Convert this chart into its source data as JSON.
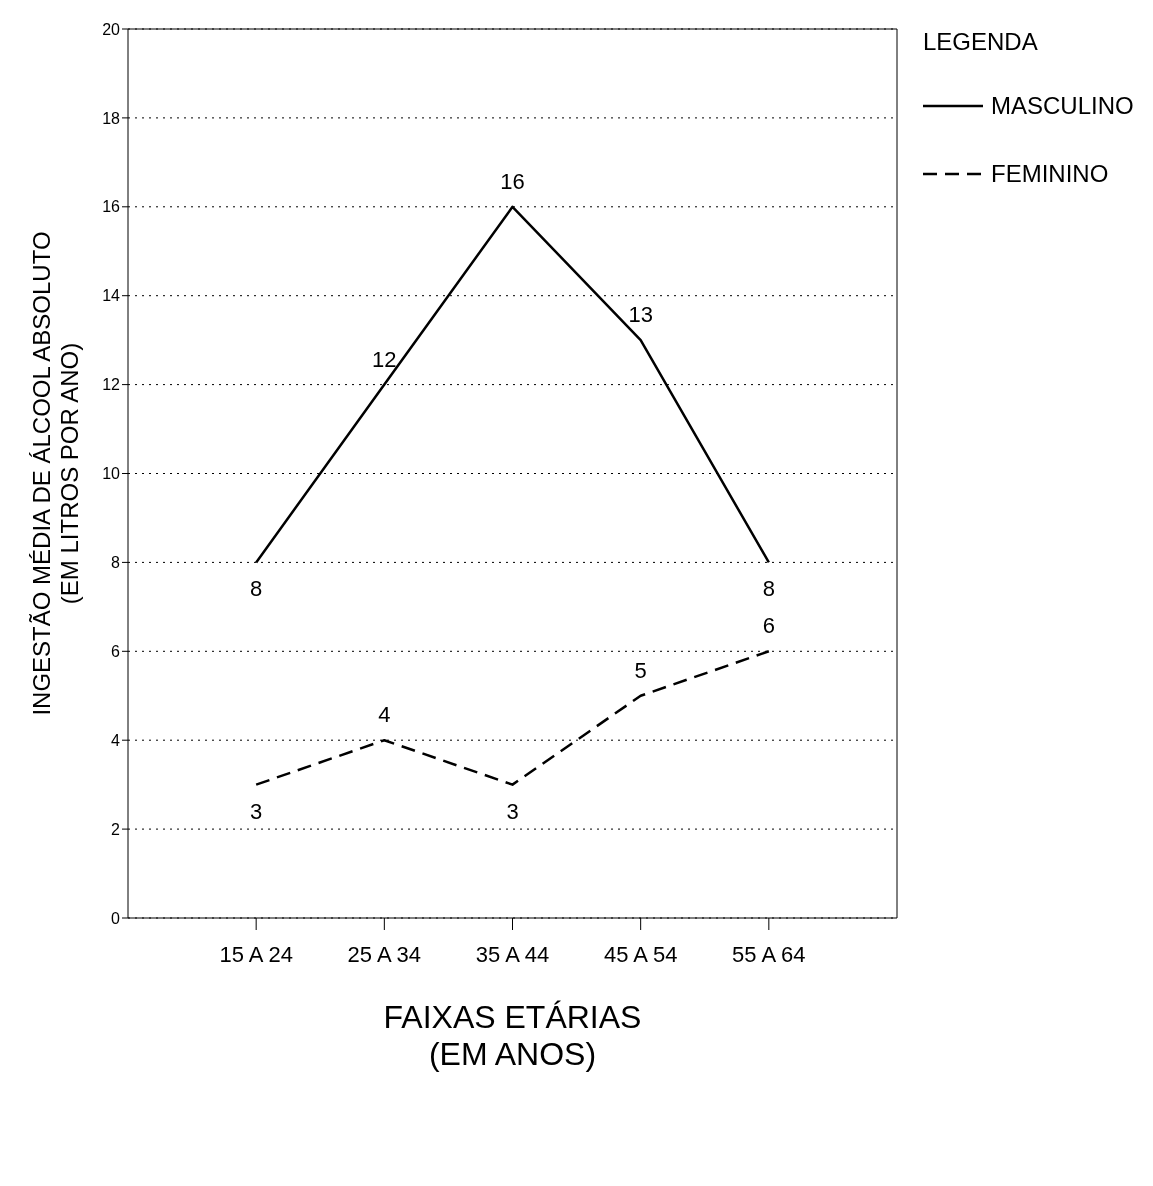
{
  "chart_data": {
    "type": "line",
    "xlabel": "FAIXAS ETÁRIAS\n(EM ANOS)",
    "ylabel": "INGESTÃO MÉDIA DE ÁLCOOL ABSOLUTO\n(EM LITROS POR ANO)",
    "legend_title": "LEGENDA",
    "categories": [
      "15 A 24",
      "25 A 34",
      "35 A 44",
      "45 A 54",
      "55 A 64"
    ],
    "series": [
      {
        "name": "MASCULINO",
        "color": "#000000",
        "line_style": "solid",
        "values": [
          8,
          12,
          16,
          13,
          8
        ]
      },
      {
        "name": "FEMININO",
        "color": "#000000",
        "line_style": "dashed",
        "values": [
          3,
          4,
          3,
          5,
          6
        ]
      }
    ],
    "ylim": [
      0,
      20
    ],
    "yticks": [
      0,
      2,
      4,
      6,
      8,
      10,
      12,
      14,
      16,
      18,
      20
    ],
    "grid": "y",
    "legend": "top right",
    "marker": "none",
    "data_labels": true
  }
}
